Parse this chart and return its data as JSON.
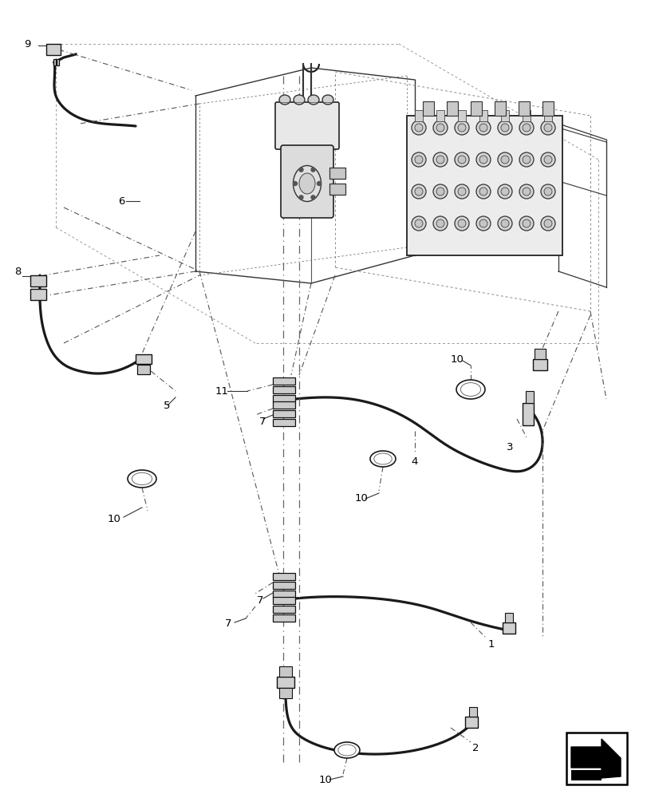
{
  "background_color": "#ffffff",
  "line_color": "#000000",
  "fig_width": 8.12,
  "fig_height": 10.0,
  "dpi": 100
}
